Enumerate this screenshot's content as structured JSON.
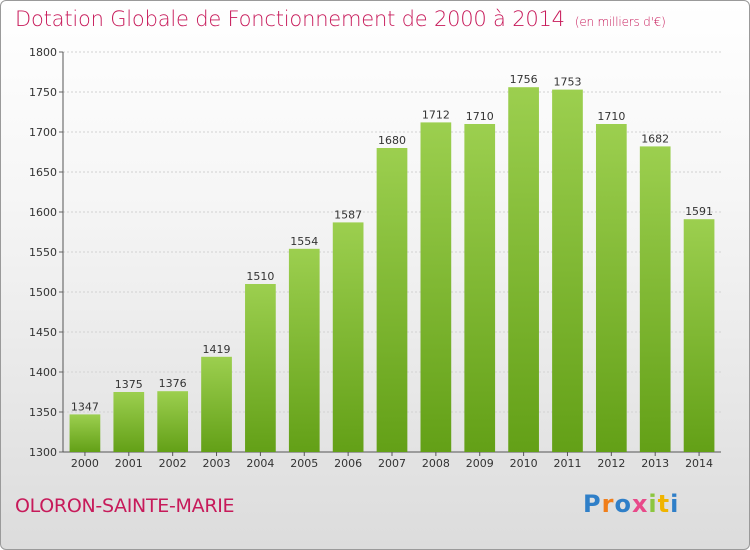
{
  "header": {
    "title": "Dotation Globale de Fonctionnement de 2000 à 2014",
    "subtitle": "(en milliers d'€)"
  },
  "footer": {
    "commune": "OLORON-SAINTE-MARIE",
    "logo": "Proxiti"
  },
  "colors": {
    "title": "#c71a5a",
    "bar_top": "#9ccf4f",
    "bar_bottom": "#63a017"
  },
  "chart_data": {
    "type": "bar",
    "categories": [
      "2000",
      "2001",
      "2002",
      "2003",
      "2004",
      "2005",
      "2006",
      "2007",
      "2008",
      "2009",
      "2010",
      "2011",
      "2012",
      "2013",
      "2014"
    ],
    "values": [
      1347,
      1375,
      1376,
      1419,
      1510,
      1554,
      1587,
      1680,
      1712,
      1710,
      1756,
      1753,
      1710,
      1682,
      1591
    ],
    "data_labels": [
      "1347",
      "1375",
      "1376",
      "1419",
      "1510",
      "1554",
      "1587",
      "1680",
      "1712",
      "1710",
      "1756",
      "1753",
      "1710",
      "1682",
      "1591"
    ],
    "title": "Dotation Globale de Fonctionnement de 2000 à 2014",
    "subtitle": "(en milliers d'€)",
    "xlabel": "",
    "ylabel": "",
    "ylim": [
      1300,
      1800
    ],
    "yticks": [
      1300,
      1350,
      1400,
      1450,
      1500,
      1550,
      1600,
      1650,
      1700,
      1750,
      1800
    ],
    "grid": true,
    "legend": "none"
  }
}
